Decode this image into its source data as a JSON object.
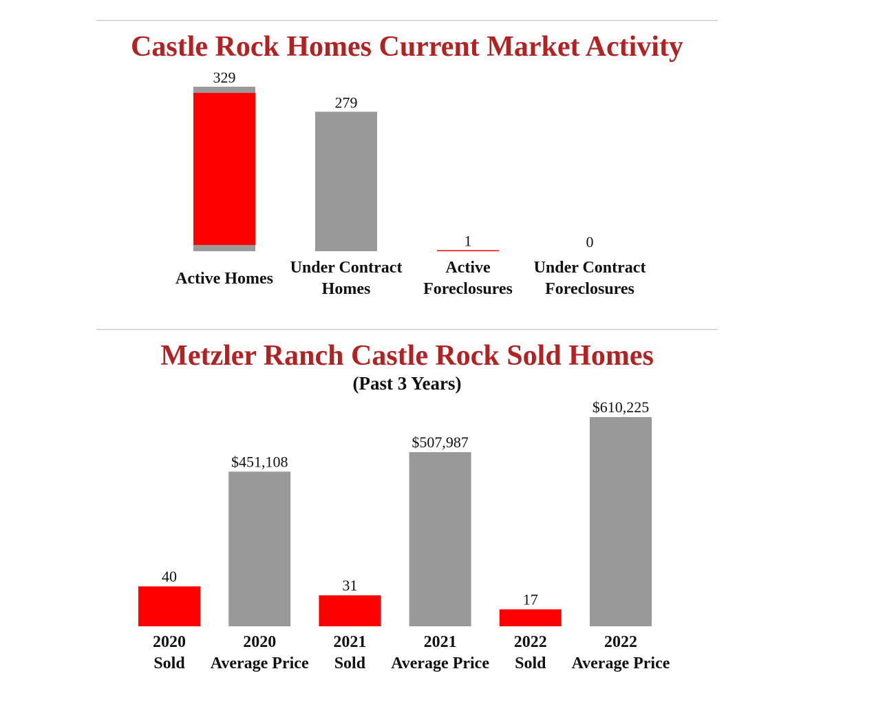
{
  "colors": {
    "title": "#b22222",
    "red": "#ff0000",
    "gray": "#999999"
  },
  "chart_data": [
    {
      "type": "bar",
      "title": "Castle Rock Homes Current Market Activity",
      "categories": [
        "Active Homes",
        "Under Contract Homes",
        "Active Foreclosures",
        "Under Contract Foreclosures"
      ],
      "category_lines": [
        [
          "Active Homes"
        ],
        [
          "Under Contract",
          "Homes"
        ],
        [
          "Active",
          "Foreclosures"
        ],
        [
          "Under Contract",
          "Foreclosures"
        ]
      ],
      "values": [
        329,
        279,
        1,
        0
      ],
      "value_labels": [
        "329",
        "279",
        "1",
        "0"
      ],
      "bar_colors": [
        "#ff0000",
        "#999999",
        "#ff0000",
        "#999999"
      ],
      "ylim": [
        0,
        329
      ],
      "grid": false
    },
    {
      "type": "bar",
      "title": "Metzler Ranch Castle Rock Sold Homes",
      "subtitle": "(Past 3 Years)",
      "categories": [
        "2020 Sold",
        "2020 Average Price",
        "2021 Sold",
        "2021 Average Price",
        "2022 Sold",
        "2022 Average Price"
      ],
      "category_lines": [
        [
          "2020",
          "Sold"
        ],
        [
          "2020",
          "Average Price"
        ],
        [
          "2021",
          "Sold"
        ],
        [
          "2021",
          "Average Price"
        ],
        [
          "2022",
          "Sold"
        ],
        [
          "2022",
          "Average Price"
        ]
      ],
      "values": [
        40,
        451108,
        31,
        507987,
        17,
        610225
      ],
      "value_labels": [
        "40",
        "$451,108",
        "31",
        "$507,987",
        "17",
        "$610,225"
      ],
      "bar_colors": [
        "#ff0000",
        "#999999",
        "#ff0000",
        "#999999",
        "#ff0000",
        "#999999"
      ],
      "grid": false
    }
  ]
}
